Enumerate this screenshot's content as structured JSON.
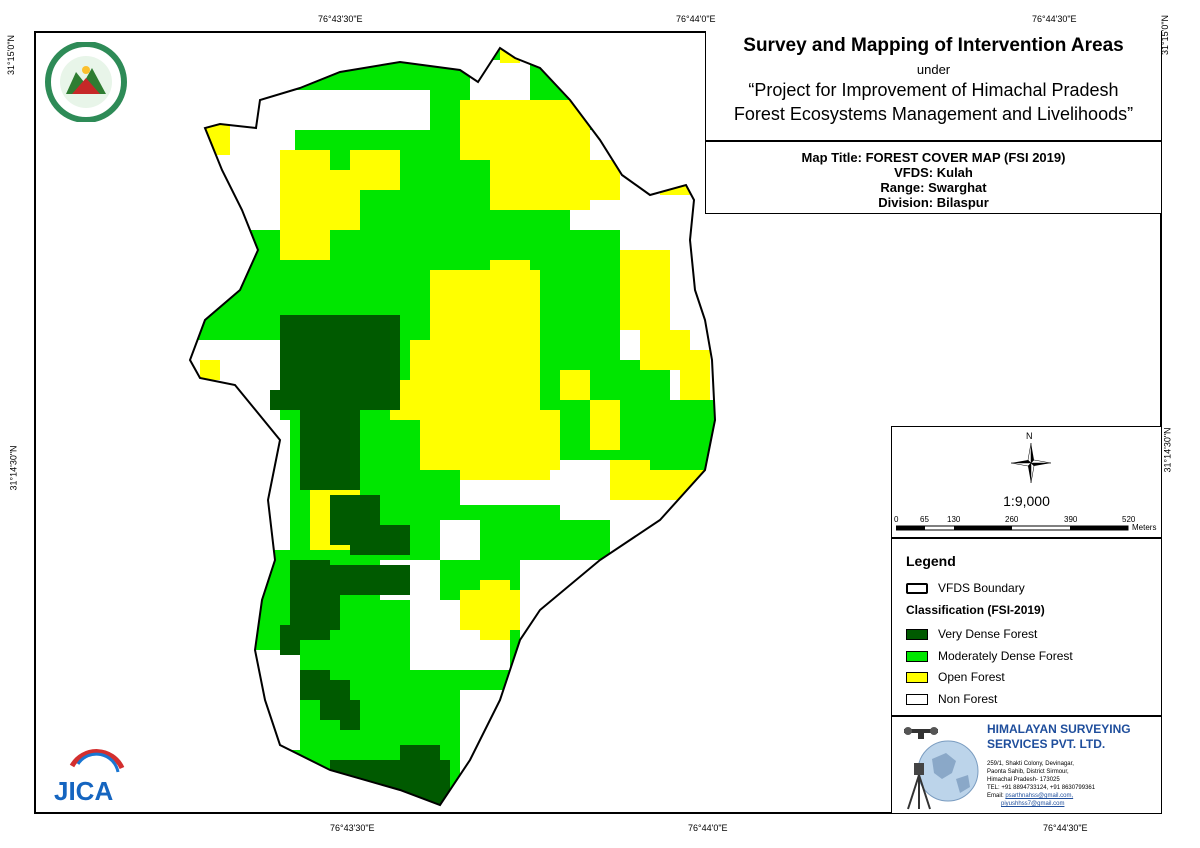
{
  "coords": {
    "top": [
      "76°43'30\"E",
      "76°44'0\"E",
      "76°44'30\"E"
    ],
    "bottom": [
      "76°43'30\"E",
      "76°44'0\"E",
      "76°44'30\"E"
    ],
    "left": [
      "31°15'0\"N",
      "31°14'30\"N"
    ],
    "right": [
      "31°15'0\"N",
      "31°14'30\"N"
    ]
  },
  "title": {
    "main": "Survey and Mapping of Intervention Areas",
    "under": "under",
    "project_line1": "“Project for Improvement of Himachal Pradesh",
    "project_line2": "Forest Ecosystems Management and Livelihoods”"
  },
  "info": {
    "map_title": "Map Title: FOREST COVER MAP (FSI 2019)",
    "vfds": "VFDS: Kulah",
    "range": "Range: Swarghat",
    "division": "Division: Bilaspur"
  },
  "scale": {
    "north": "N",
    "ratio": "1:9,000",
    "ticks": [
      "0",
      "65",
      "130",
      "260",
      "390",
      "520"
    ],
    "units": "Meters"
  },
  "legend": {
    "title": "Legend",
    "boundary": "VFDS Boundary",
    "classification_title": "Classification (FSI-2019)",
    "classes": [
      {
        "label": "Very Dense Forest",
        "color": "#005a00"
      },
      {
        "label": "Moderately Dense Forest",
        "color": "#00e600"
      },
      {
        "label": "Open Forest",
        "color": "#ffff00"
      },
      {
        "label": "Non Forest",
        "color": "#ffffff"
      }
    ]
  },
  "company": {
    "name_line1": "HIMALAYAN SURVEYING",
    "name_line2": "SERVICES PVT. LTD.",
    "addr1": "259/1, Shakti Colony, Devinagar,",
    "addr2": "Paonta Sahib, District Sirmour,",
    "addr3": "Himachal Pradesh- 173025",
    "tel": "TEL: +91 8894733124, +91 8630799361",
    "email_label": "Email:",
    "email1": "psarthnahss@gmail.com,",
    "email2": "piyushhss7@gmail.com"
  },
  "logos": {
    "jica_text": "JICA"
  }
}
